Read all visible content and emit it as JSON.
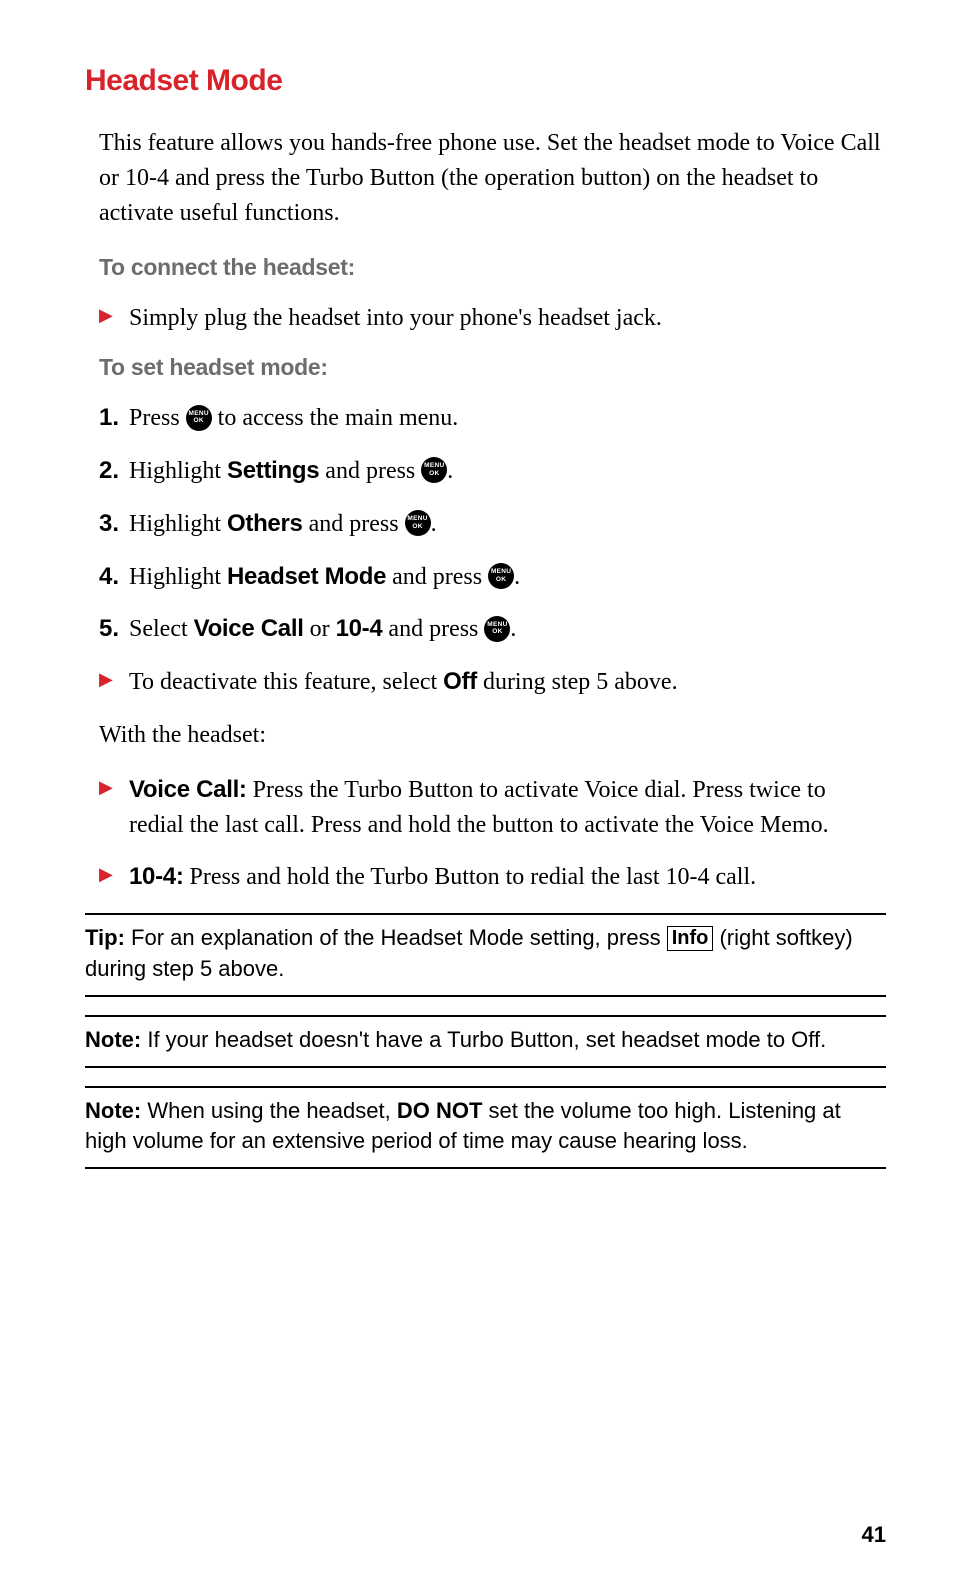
{
  "colors": {
    "title": "#d8232a",
    "subhead": "#6d6d6d",
    "arrow": "#d8232a",
    "text": "#000000",
    "background": "#ffffff"
  },
  "title": "Headset Mode",
  "intro": "This feature allows you hands-free phone use. Set the headset mode to Voice Call or 10-4 and press the Turbo Button (the operation button) on the headset to activate useful functions.",
  "sub1": "To connect the headset:",
  "bullet1": "Simply plug the headset into your phone's headset jack.",
  "sub2": "To set headset mode:",
  "menuok": {
    "line1": "MENU",
    "line2": "OK"
  },
  "step1": {
    "pre": "Press ",
    "post": " to access the main menu."
  },
  "step2": {
    "pre": "Highlight ",
    "bold": "Settings",
    "mid": " and press ",
    "post": "."
  },
  "step3": {
    "pre": "Highlight ",
    "bold": "Others",
    "mid": " and press ",
    "post": "."
  },
  "step4": {
    "pre": "Highlight ",
    "bold": "Headset Mode",
    "mid": " and press ",
    "post": "."
  },
  "step5": {
    "pre": "Select ",
    "bold1": "Voice Call",
    "mid1": " or ",
    "bold2": "10-4",
    "mid2": " and press ",
    "post": "."
  },
  "bullet_off": {
    "pre": "To deactivate this feature, select ",
    "bold": "Off",
    "post": " during step 5 above."
  },
  "withHeadset": "With the headset:",
  "vc": {
    "label": "Voice Call:",
    "text": " Press the Turbo Button to activate Voice dial. Press twice to redial the last call. Press and hold the button to activate the Voice Memo."
  },
  "tf": {
    "label": "10-4:",
    "text": " Press and hold the Turbo Button to redial the last 10-4 call."
  },
  "tip": {
    "label": "Tip:",
    "pre": " For an explanation of the Headset Mode setting, press ",
    "info": "Info",
    "post": " (right softkey) during step 5 above."
  },
  "note1": {
    "label": "Note:",
    "text": " If your headset doesn't have a Turbo Button, set headset mode to Off."
  },
  "note2": {
    "label": "Note:",
    "pre": " When using the headset, ",
    "bold": "DO NOT",
    "post": " set the volume too high. Listening at high volume for an extensive period of time may cause hearing loss."
  },
  "pageNumber": "41"
}
